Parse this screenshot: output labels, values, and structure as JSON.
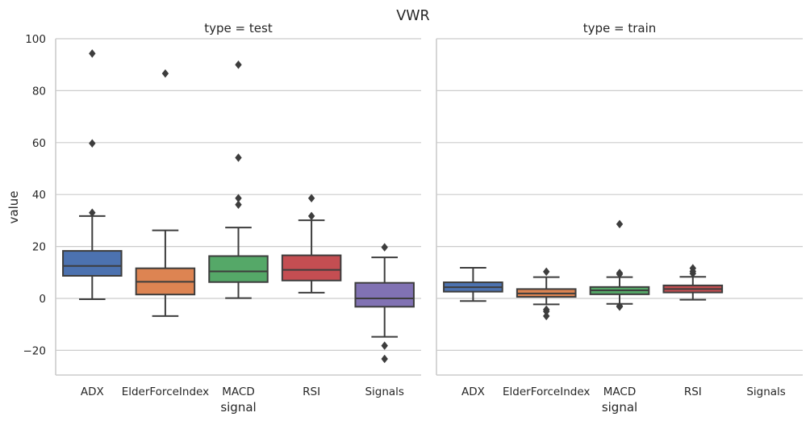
{
  "chart_data": {
    "type": "box",
    "title": "VWR",
    "xlabel": "signal",
    "ylabel": "value",
    "ylim": [
      -29.5,
      100
    ],
    "yticks": [
      -20,
      0,
      20,
      40,
      60,
      80,
      100
    ],
    "ytick_labels": [
      "−20",
      "0",
      "20",
      "40",
      "60",
      "80",
      "100"
    ],
    "grid": "horizontal",
    "categories": [
      "ADX",
      "ElderForceIndex",
      "MACD",
      "RSI",
      "Signals"
    ],
    "colors": [
      "#4c72b0",
      "#dd8452",
      "#55a868",
      "#c44e52",
      "#8172b3"
    ],
    "panels": [
      {
        "title": "type = test",
        "boxes": [
          {
            "category": "ADX",
            "q1": 8.7,
            "median": 12.5,
            "q3": 18.3,
            "whisker_low": -0.3,
            "whisker_high": 31.7,
            "outliers": [
              33.0,
              59.7,
              94.3
            ]
          },
          {
            "category": "ElderForceIndex",
            "q1": 1.5,
            "median": 6.4,
            "q3": 11.6,
            "whisker_low": -6.8,
            "whisker_high": 26.2,
            "outliers": [
              86.6
            ]
          },
          {
            "category": "MACD",
            "q1": 6.3,
            "median": 10.4,
            "q3": 16.3,
            "whisker_low": 0.1,
            "whisker_high": 27.3,
            "outliers": [
              36.1,
              38.6,
              54.2,
              90.0
            ]
          },
          {
            "category": "RSI",
            "q1": 6.9,
            "median": 11.0,
            "q3": 16.6,
            "whisker_low": 2.2,
            "whisker_high": 30.1,
            "outliers": [
              31.7,
              38.6
            ]
          },
          {
            "category": "Signals",
            "q1": -3.2,
            "median": 0.0,
            "q3": 6.0,
            "whisker_low": -14.8,
            "whisker_high": 15.8,
            "outliers": [
              -18.2,
              -23.3,
              19.7
            ]
          }
        ]
      },
      {
        "title": "type = train",
        "boxes": [
          {
            "category": "ADX",
            "q1": 2.6,
            "median": 4.3,
            "q3": 6.2,
            "whisker_low": -1.0,
            "whisker_high": 11.8,
            "outliers": []
          },
          {
            "category": "ElderForceIndex",
            "q1": 0.6,
            "median": 1.9,
            "q3": 3.6,
            "whisker_low": -2.3,
            "whisker_high": 8.2,
            "outliers": [
              -4.3,
              -5.0,
              -6.8,
              10.3
            ]
          },
          {
            "category": "MACD",
            "q1": 1.6,
            "median": 3.1,
            "q3": 4.4,
            "whisker_low": -2.1,
            "whisker_high": 8.2,
            "outliers": [
              -2.9,
              -3.2,
              9.3,
              9.8,
              28.6
            ]
          },
          {
            "category": "RSI",
            "q1": 2.3,
            "median": 3.6,
            "q3": 5.0,
            "whisker_low": -0.5,
            "whisker_high": 8.3,
            "outliers": [
              9.6,
              10.4,
              11.6
            ]
          },
          {
            "category": "Signals",
            "q1": null,
            "median": null,
            "q3": null,
            "whisker_low": null,
            "whisker_high": null,
            "outliers": []
          }
        ]
      }
    ]
  }
}
